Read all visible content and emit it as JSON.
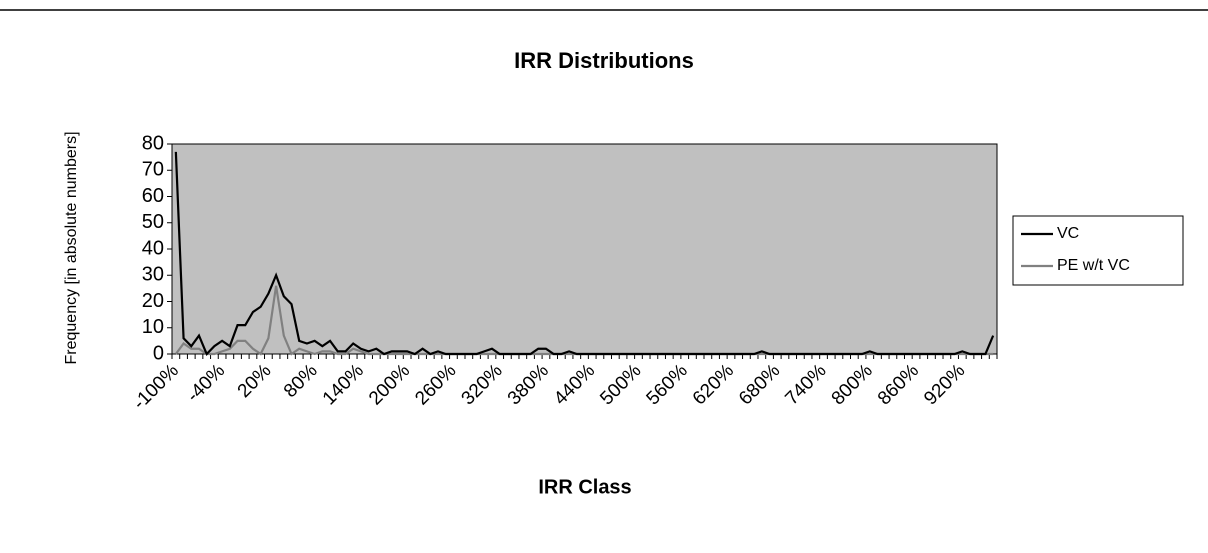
{
  "chart_data": {
    "type": "line",
    "title": "IRR Distributions",
    "x_label": "IRR Class",
    "y_label": "Frequency [in absolute numbers]",
    "categories": [
      "-100%",
      null,
      null,
      null,
      null,
      null,
      "-40%",
      null,
      null,
      null,
      null,
      null,
      "20%",
      null,
      null,
      null,
      null,
      null,
      "80%",
      null,
      null,
      null,
      null,
      null,
      "140%",
      null,
      null,
      null,
      null,
      null,
      "200%",
      null,
      null,
      null,
      null,
      null,
      "260%",
      null,
      null,
      null,
      null,
      null,
      "320%",
      null,
      null,
      null,
      null,
      null,
      "380%",
      null,
      null,
      null,
      null,
      null,
      "440%",
      null,
      null,
      null,
      null,
      null,
      "500%",
      null,
      null,
      null,
      null,
      null,
      "560%",
      null,
      null,
      null,
      null,
      null,
      "620%",
      null,
      null,
      null,
      null,
      null,
      "680%",
      null,
      null,
      null,
      null,
      null,
      "740%",
      null,
      null,
      null,
      null,
      null,
      "800%",
      null,
      null,
      null,
      null,
      null,
      "860%",
      null,
      null,
      null,
      null,
      null,
      "920%",
      null,
      null,
      null,
      null
    ],
    "series": [
      {
        "name": "VC",
        "color": "#000000",
        "values": [
          77,
          6,
          3,
          7,
          0,
          3,
          5,
          3,
          11,
          11,
          16,
          18,
          23,
          30,
          22,
          19,
          5,
          4,
          5,
          3,
          5,
          1,
          1,
          4,
          2,
          1,
          2,
          0,
          1,
          1,
          1,
          0,
          2,
          0,
          1,
          0,
          0,
          0,
          0,
          0,
          1,
          2,
          0,
          0,
          0,
          0,
          0,
          2,
          2,
          0,
          0,
          1,
          0,
          0,
          0,
          0,
          0,
          0,
          0,
          0,
          0,
          0,
          0,
          0,
          0,
          0,
          0,
          0,
          0,
          0,
          0,
          0,
          0,
          0,
          0,
          0,
          1,
          0,
          0,
          0,
          0,
          0,
          0,
          0,
          0,
          0,
          0,
          0,
          0,
          0,
          1,
          0,
          0,
          0,
          0,
          0,
          0,
          0,
          0,
          0,
          0,
          0,
          1,
          0,
          0,
          0,
          7
        ]
      },
      {
        "name": "PE w/t VC",
        "color": "#808080",
        "values": [
          0,
          4,
          2,
          2,
          0,
          0,
          1,
          2,
          5,
          5,
          2,
          0,
          6,
          26,
          7,
          0,
          2,
          1,
          0,
          1,
          1,
          0,
          0,
          2,
          1,
          0,
          0,
          0,
          0,
          0,
          0,
          0,
          0,
          0,
          0,
          0,
          0,
          0,
          0,
          0,
          0,
          0,
          0,
          0,
          0,
          0,
          0,
          0,
          0,
          0,
          0,
          0,
          0,
          0,
          0,
          0,
          0,
          0,
          0,
          0,
          0,
          0,
          0,
          0,
          0,
          0,
          0,
          0,
          0,
          0,
          0,
          0,
          0,
          0,
          0,
          0,
          0,
          0,
          0,
          0,
          0,
          0,
          0,
          0,
          0,
          0,
          0,
          0,
          0,
          0,
          0,
          0,
          0,
          0,
          0,
          0,
          0,
          0,
          0,
          0,
          0,
          0,
          0,
          0,
          0,
          0,
          0
        ]
      }
    ],
    "ylim": [
      0,
      80
    ],
    "yticks": [
      0,
      10,
      20,
      30,
      40,
      50,
      60,
      70,
      80
    ],
    "plot_background": "#c0c0c0",
    "legend": "right"
  }
}
